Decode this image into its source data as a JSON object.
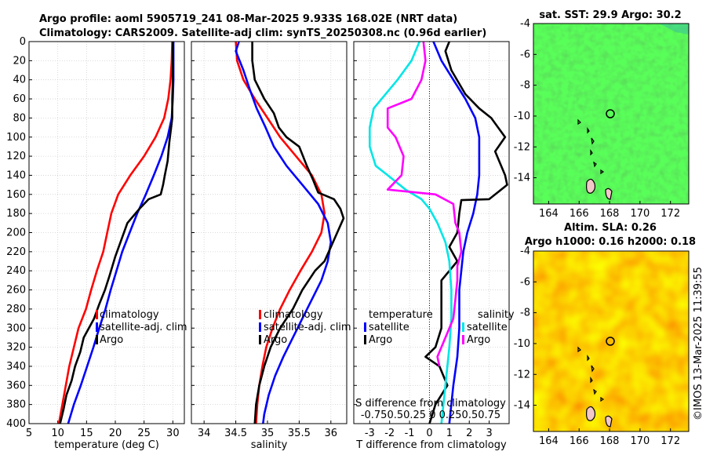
{
  "header": {
    "title_line1": "Argo profile: aoml 5905719_241 08-Mar-2025 9.933S 168.02E (NRT data)",
    "title_line2": "Climatology: CARS2009. Satellite-adj clim: synTS_20250308.nc (0.96d earlier)"
  },
  "colors": {
    "climatology": "#ff0000",
    "satellite": "#0000ff",
    "argo": "#000000",
    "temp_diff": "#00e6e6",
    "salinity_diff": "#ff00ff"
  },
  "chart_data": [
    {
      "id": "temperature",
      "type": "line",
      "xlabel": "temperature (deg C)",
      "ylabel": "",
      "xlim": [
        5,
        32
      ],
      "ylim": [
        400,
        0
      ],
      "grid": true,
      "xticks": [
        5,
        10,
        15,
        20,
        25,
        30
      ],
      "yticks": [
        0,
        20,
        40,
        60,
        80,
        100,
        120,
        140,
        160,
        180,
        200,
        220,
        240,
        260,
        280,
        300,
        320,
        340,
        360,
        380,
        400
      ],
      "legend": [
        "climatology",
        "satellite-adj. clim",
        "Argo"
      ],
      "series": [
        {
          "name": "climatology",
          "color": "#ff0000",
          "points": [
            [
              29.9,
              0
            ],
            [
              29.8,
              20
            ],
            [
              29.6,
              40
            ],
            [
              29.2,
              60
            ],
            [
              28.5,
              80
            ],
            [
              27.0,
              100
            ],
            [
              25.0,
              120
            ],
            [
              22.6,
              140
            ],
            [
              20.5,
              160
            ],
            [
              19.3,
              180
            ],
            [
              18.6,
              200
            ],
            [
              17.9,
              220
            ],
            [
              16.8,
              240
            ],
            [
              15.8,
              260
            ],
            [
              14.9,
              280
            ],
            [
              13.6,
              300
            ],
            [
              12.8,
              320
            ],
            [
              12.0,
              340
            ],
            [
              11.4,
              360
            ],
            [
              10.8,
              380
            ],
            [
              10.2,
              400
            ]
          ]
        },
        {
          "name": "satellite-adj. clim",
          "color": "#0000ff",
          "points": [
            [
              30.1,
              0
            ],
            [
              30.1,
              20
            ],
            [
              30.1,
              40
            ],
            [
              30.0,
              60
            ],
            [
              29.8,
              80
            ],
            [
              29.1,
              100
            ],
            [
              28.0,
              120
            ],
            [
              26.7,
              140
            ],
            [
              25.3,
              160
            ],
            [
              23.8,
              180
            ],
            [
              22.5,
              200
            ],
            [
              21.2,
              220
            ],
            [
              20.2,
              240
            ],
            [
              19.2,
              260
            ],
            [
              18.3,
              280
            ],
            [
              17.2,
              300
            ],
            [
              16.2,
              320
            ],
            [
              15.1,
              340
            ],
            [
              14.0,
              360
            ],
            [
              12.8,
              380
            ],
            [
              11.8,
              400
            ]
          ]
        },
        {
          "name": "Argo",
          "color": "#000000",
          "points": [
            [
              30.0,
              0
            ],
            [
              30.0,
              20
            ],
            [
              30.0,
              40
            ],
            [
              29.9,
              60
            ],
            [
              29.9,
              80
            ],
            [
              29.6,
              95
            ],
            [
              29.4,
              105
            ],
            [
              29.1,
              125
            ],
            [
              28.6,
              140
            ],
            [
              28.3,
              150
            ],
            [
              27.9,
              160
            ],
            [
              25.8,
              165
            ],
            [
              24.2,
              175
            ],
            [
              22.1,
              190
            ],
            [
              21.2,
              205
            ],
            [
              20.0,
              225
            ],
            [
              19.0,
              245
            ],
            [
              18.2,
              260
            ],
            [
              17.2,
              275
            ],
            [
              16.3,
              290
            ],
            [
              15.4,
              300
            ],
            [
              14.5,
              310
            ],
            [
              13.9,
              325
            ],
            [
              13.0,
              340
            ],
            [
              12.4,
              355
            ],
            [
              11.5,
              370
            ],
            [
              11.0,
              385
            ],
            [
              10.4,
              400
            ]
          ]
        }
      ]
    },
    {
      "id": "salinity",
      "type": "line",
      "xlabel": "salinity",
      "ylabel": "",
      "xlim": [
        33.8,
        36.25
      ],
      "ylim": [
        400,
        0
      ],
      "grid": true,
      "xticks": [
        34,
        34.5,
        35,
        35.5,
        36
      ],
      "legend": [
        "climatology",
        "satellite-adj. clim",
        "Argo"
      ],
      "series": [
        {
          "name": "climatology",
          "color": "#ff0000",
          "points": [
            [
              34.5,
              0
            ],
            [
              34.52,
              20
            ],
            [
              34.62,
              40
            ],
            [
              34.8,
              60
            ],
            [
              35.0,
              80
            ],
            [
              35.2,
              100
            ],
            [
              35.45,
              120
            ],
            [
              35.7,
              140
            ],
            [
              35.85,
              160
            ],
            [
              35.9,
              180
            ],
            [
              35.85,
              200
            ],
            [
              35.7,
              220
            ],
            [
              35.52,
              240
            ],
            [
              35.35,
              260
            ],
            [
              35.2,
              280
            ],
            [
              35.08,
              300
            ],
            [
              34.98,
              320
            ],
            [
              34.92,
              340
            ],
            [
              34.87,
              360
            ],
            [
              34.84,
              380
            ],
            [
              34.82,
              400
            ]
          ]
        },
        {
          "name": "satellite-adj. clim",
          "color": "#0000ff",
          "points": [
            [
              34.55,
              0
            ],
            [
              34.5,
              10
            ],
            [
              34.62,
              30
            ],
            [
              34.72,
              50
            ],
            [
              34.83,
              70
            ],
            [
              34.97,
              90
            ],
            [
              35.1,
              110
            ],
            [
              35.3,
              130
            ],
            [
              35.55,
              150
            ],
            [
              35.8,
              170
            ],
            [
              35.95,
              190
            ],
            [
              36.0,
              210
            ],
            [
              35.95,
              230
            ],
            [
              35.85,
              250
            ],
            [
              35.7,
              270
            ],
            [
              35.55,
              290
            ],
            [
              35.4,
              310
            ],
            [
              35.25,
              330
            ],
            [
              35.12,
              350
            ],
            [
              35.02,
              370
            ],
            [
              34.95,
              390
            ],
            [
              34.93,
              400
            ]
          ]
        },
        {
          "name": "Argo",
          "color": "#000000",
          "points": [
            [
              34.76,
              0
            ],
            [
              34.76,
              20
            ],
            [
              34.8,
              40
            ],
            [
              34.95,
              60
            ],
            [
              35.1,
              75
            ],
            [
              35.18,
              90
            ],
            [
              35.3,
              100
            ],
            [
              35.5,
              110
            ],
            [
              35.62,
              130
            ],
            [
              35.72,
              145
            ],
            [
              35.8,
              158
            ],
            [
              36.05,
              165
            ],
            [
              36.15,
              175
            ],
            [
              36.2,
              185
            ],
            [
              36.1,
              200
            ],
            [
              36.0,
              215
            ],
            [
              35.9,
              230
            ],
            [
              35.75,
              240
            ],
            [
              35.55,
              260
            ],
            [
              35.4,
              280
            ],
            [
              35.2,
              300
            ],
            [
              35.05,
              320
            ],
            [
              34.95,
              340
            ],
            [
              34.87,
              360
            ],
            [
              34.82,
              380
            ],
            [
              34.8,
              400
            ]
          ]
        }
      ]
    },
    {
      "id": "difference",
      "type": "line",
      "xlabel": "T difference from climatology",
      "ylabel": "",
      "xlim": [
        -3.8,
        4.0
      ],
      "ylim": [
        400,
        0
      ],
      "grid": true,
      "xticks": [
        -3,
        -2,
        -1,
        0,
        1,
        2,
        3
      ],
      "annotation_line1": "S difference from climatology",
      "annotation_line2": "-0.750.50.25  0  0.250.50.75",
      "legend": {
        "temperature_heading": "temperature",
        "salinity_heading": "salinity",
        "temperature_items": [
          "satellite",
          "Argo"
        ],
        "salinity_items": [
          "satellite",
          "Argo"
        ]
      },
      "series": [
        {
          "name": "temperature satellite",
          "color": "#0000ff",
          "points": [
            [
              0.2,
              0
            ],
            [
              0.6,
              20
            ],
            [
              1.2,
              40
            ],
            [
              1.8,
              60
            ],
            [
              2.3,
              80
            ],
            [
              2.5,
              100
            ],
            [
              2.5,
              140
            ],
            [
              2.4,
              160
            ],
            [
              2.2,
              180
            ],
            [
              1.9,
              200
            ],
            [
              1.7,
              220
            ],
            [
              1.5,
              260
            ],
            [
              1.5,
              300
            ],
            [
              1.4,
              330
            ],
            [
              1.2,
              360
            ],
            [
              1.0,
              400
            ]
          ]
        },
        {
          "name": "temperature Argo",
          "color": "#000000",
          "points": [
            [
              1.0,
              0
            ],
            [
              0.8,
              10
            ],
            [
              1.1,
              30
            ],
            [
              1.8,
              55
            ],
            [
              2.5,
              70
            ],
            [
              3.1,
              80
            ],
            [
              3.8,
              100
            ],
            [
              3.3,
              115
            ],
            [
              3.5,
              125
            ],
            [
              3.8,
              140
            ],
            [
              3.9,
              150
            ],
            [
              3.0,
              165
            ],
            [
              1.6,
              166
            ],
            [
              1.5,
              180
            ],
            [
              1.4,
              200
            ],
            [
              1.0,
              215
            ],
            [
              1.4,
              230
            ],
            [
              0.6,
              250
            ],
            [
              0.6,
              280
            ],
            [
              0.6,
              300
            ],
            [
              0.3,
              320
            ],
            [
              -0.2,
              330
            ],
            [
              0.5,
              340
            ],
            [
              0.9,
              360
            ],
            [
              0.3,
              380
            ],
            [
              0.0,
              400
            ]
          ]
        },
        {
          "name": "salinity satellite",
          "color": "#00e6e6",
          "points": [
            [
              -0.5,
              0
            ],
            [
              -0.9,
              20
            ],
            [
              -1.6,
              40
            ],
            [
              -2.8,
              70
            ],
            [
              -3.0,
              90
            ],
            [
              -3.0,
              110
            ],
            [
              -2.7,
              130
            ],
            [
              -2.1,
              140
            ],
            [
              -1.2,
              155
            ],
            [
              -0.4,
              165
            ],
            [
              0.0,
              175
            ],
            [
              0.4,
              190
            ],
            [
              0.8,
              210
            ],
            [
              1.0,
              230
            ],
            [
              1.1,
              260
            ],
            [
              1.1,
              290
            ],
            [
              1.0,
              320
            ],
            [
              0.8,
              360
            ],
            [
              0.6,
              400
            ]
          ]
        },
        {
          "name": "salinity Argo",
          "color": "#ff00ff",
          "points": [
            [
              -0.3,
              0
            ],
            [
              -0.2,
              20
            ],
            [
              -0.4,
              40
            ],
            [
              -0.9,
              60
            ],
            [
              -2.1,
              70
            ],
            [
              -2.1,
              90
            ],
            [
              -1.7,
              100
            ],
            [
              -1.3,
              120
            ],
            [
              -1.4,
              140
            ],
            [
              -2.1,
              155
            ],
            [
              0.3,
              160
            ],
            [
              1.2,
              170
            ],
            [
              1.3,
              190
            ],
            [
              1.5,
              200
            ],
            [
              1.6,
              220
            ],
            [
              1.4,
              235
            ],
            [
              1.4,
              250
            ],
            [
              1.3,
              270
            ],
            [
              1.2,
              290
            ],
            [
              0.8,
              310
            ],
            [
              0.4,
              330
            ],
            [
              0.5,
              340
            ]
          ]
        }
      ]
    },
    {
      "id": "sat-sst-map",
      "type": "heatmap",
      "title": "sat. SST: 29.9 Argo: 30.2",
      "xlim": [
        163,
        173.2
      ],
      "ylim": [
        -15.7,
        -4
      ],
      "xticks": [
        164,
        166,
        168,
        170,
        172
      ],
      "yticks": [
        -4,
        -6,
        -8,
        -10,
        -12,
        -14
      ],
      "profile_marker": [
        168.02,
        -9.933
      ]
    },
    {
      "id": "sla-map",
      "type": "heatmap",
      "title_line1": "Altim. SLA: 0.26",
      "title_line2": "Argo h1000: 0.16 h2000: 0.18",
      "xlim": [
        163,
        173.2
      ],
      "ylim": [
        -15.7,
        -4
      ],
      "xticks": [
        164,
        166,
        168,
        170,
        172
      ],
      "yticks": [
        -4,
        -6,
        -8,
        -10,
        -12,
        -14
      ],
      "profile_marker": [
        168.02,
        -9.933
      ]
    }
  ],
  "footer": {
    "credit": "©IMOS 13-Mar-2025 11:39:55"
  }
}
